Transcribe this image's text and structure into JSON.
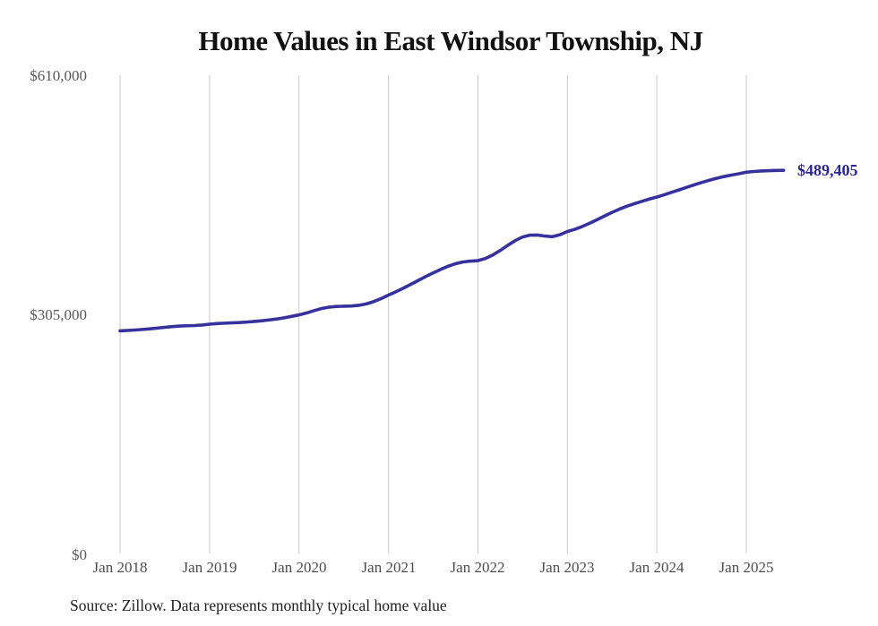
{
  "source_note": "Source: Zillow. Data represents monthly typical home value",
  "colors": {
    "line": "#37319e",
    "end_label": "#2b2791",
    "gridline": "#cbcbcb",
    "axis_text": "#595959",
    "title_text": "#111111"
  },
  "chart_data": {
    "type": "line",
    "title": "Home Values in East Windsor Township, NJ",
    "series_name": "Monthly typical home value",
    "unit": "USD",
    "frequency": "monthly",
    "x_range": [
      "Jan 2018",
      "Jun 2025"
    ],
    "ylim": [
      0,
      610000
    ],
    "grid": "vertical-only",
    "legend": "none",
    "end_label": "$489,405",
    "latest_value": 489405,
    "x_ticks": [
      {
        "label": "Jan 2018",
        "month": 0
      },
      {
        "label": "Jan 2019",
        "month": 12
      },
      {
        "label": "Jan 2020",
        "month": 24
      },
      {
        "label": "Jan 2021",
        "month": 36
      },
      {
        "label": "Jan 2022",
        "month": 48
      },
      {
        "label": "Jan 2023",
        "month": 60
      },
      {
        "label": "Jan 2024",
        "month": 72
      },
      {
        "label": "Jan 2025",
        "month": 84
      }
    ],
    "y_ticks": [
      {
        "label": "$0",
        "value": 0
      },
      {
        "label": "$305,000",
        "value": 305000
      },
      {
        "label": "$610,000",
        "value": 610000
      }
    ],
    "values": [
      284800,
      285300,
      285900,
      286600,
      287400,
      288300,
      289300,
      290200,
      290900,
      291300,
      291600,
      292200,
      293300,
      294100,
      294600,
      295000,
      295400,
      296000,
      296800,
      297700,
      298700,
      299900,
      301400,
      303200,
      305200,
      307500,
      310500,
      313200,
      315000,
      315900,
      316200,
      316500,
      317300,
      319100,
      322000,
      325900,
      330400,
      334600,
      339200,
      344100,
      349100,
      354000,
      358600,
      363100,
      367100,
      370400,
      372600,
      373700,
      374300,
      377000,
      381500,
      387300,
      393800,
      399800,
      404500,
      406800,
      406900,
      405600,
      404800,
      407300,
      411400,
      414200,
      417800,
      422000,
      426500,
      431200,
      435800,
      440000,
      443700,
      446900,
      449900,
      452800,
      455300,
      458300,
      461400,
      464500,
      467700,
      470800,
      473800,
      476600,
      479200,
      481400,
      483300,
      485000,
      487000,
      487900,
      488500,
      488900,
      489200,
      489405
    ]
  }
}
